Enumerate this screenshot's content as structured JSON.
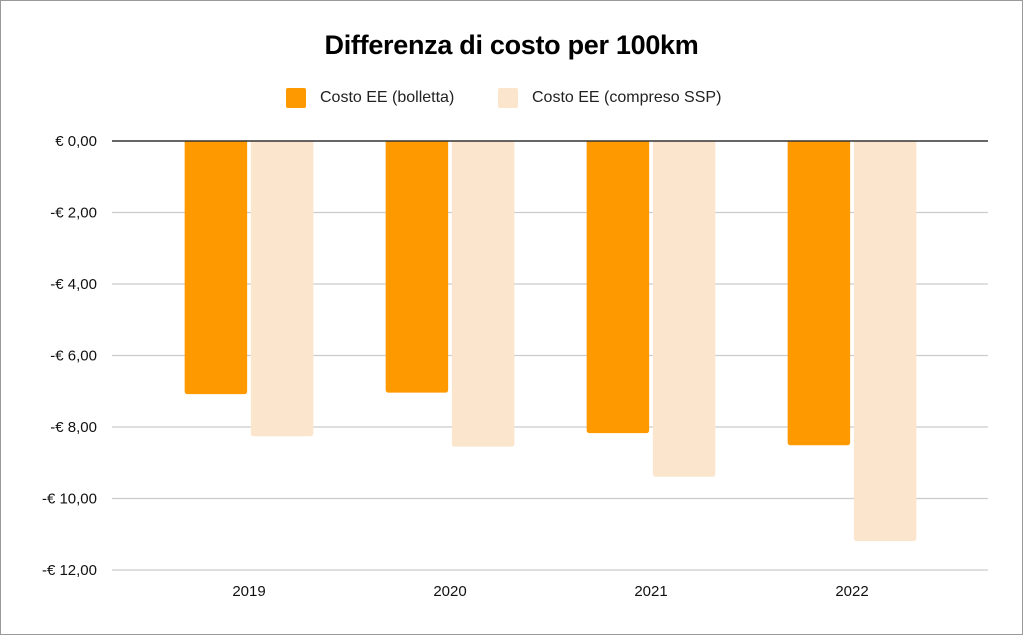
{
  "chart_data": {
    "type": "bar",
    "title": "Differenza di costo per 100km",
    "xlabel": "",
    "ylabel": "",
    "categories": [
      "2019",
      "2020",
      "2021",
      "2022"
    ],
    "series": [
      {
        "name": "Costo EE (bolletta)",
        "color": "#FF9900",
        "values": [
          -7.08,
          -7.04,
          -8.17,
          -8.51
        ]
      },
      {
        "name": "Costo EE (compreso SSP)",
        "color": "#FCE5CD",
        "values": [
          -8.26,
          -8.55,
          -9.39,
          -11.19
        ]
      }
    ],
    "ylim": [
      -12,
      0
    ],
    "yticks": [
      0,
      -2,
      -4,
      -6,
      -8,
      -10,
      -12
    ],
    "ytick_labels": [
      "€ 0,00",
      "-€ 2,00",
      "-€ 4,00",
      "-€ 6,00",
      "-€ 8,00",
      "-€ 10,00",
      "-€ 12,00"
    ],
    "grid": true,
    "legend_position": "top-center",
    "zero_line_color": "#333333",
    "grid_color": "#cccccc"
  }
}
